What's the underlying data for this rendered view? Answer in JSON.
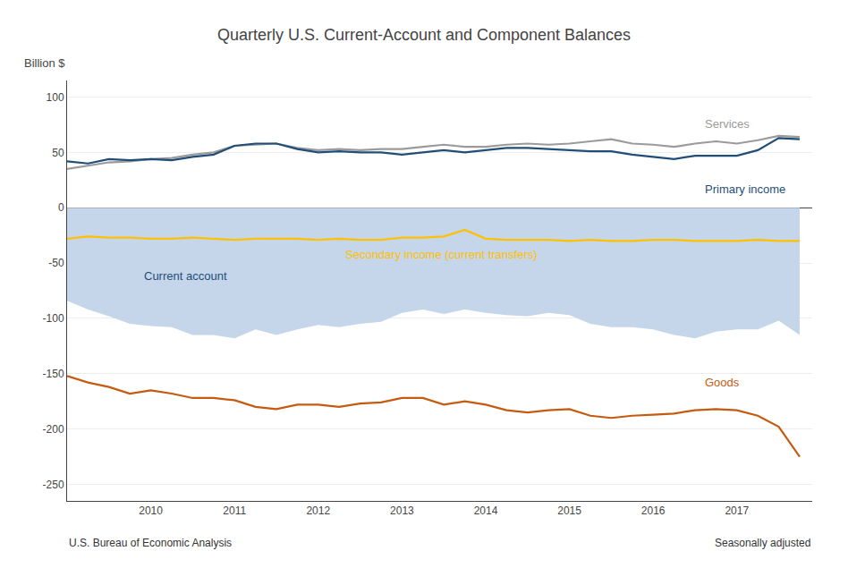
{
  "chart_data": {
    "type": "line",
    "title": "Quarterly U.S. Current-Account and Component Balances",
    "ylabel": "Billion $",
    "source": "U.S. Bureau of Economic Analysis",
    "note": "Seasonally adjusted",
    "x": [
      2009.0,
      2009.25,
      2009.5,
      2009.75,
      2010.0,
      2010.25,
      2010.5,
      2010.75,
      2011.0,
      2011.25,
      2011.5,
      2011.75,
      2012.0,
      2012.25,
      2012.5,
      2012.75,
      2013.0,
      2013.25,
      2013.5,
      2013.75,
      2014.0,
      2014.25,
      2014.5,
      2014.75,
      2015.0,
      2015.25,
      2015.5,
      2015.75,
      2016.0,
      2016.25,
      2016.5,
      2016.75,
      2017.0,
      2017.25,
      2017.5,
      2017.75
    ],
    "series": [
      {
        "name": "Current account",
        "type": "area",
        "color": "#c5d5ea",
        "values": [
          -84,
          -92,
          -98,
          -105,
          -107,
          -108,
          -115,
          -115,
          -118,
          -110,
          -115,
          -110,
          -106,
          -108,
          -105,
          -103,
          -95,
          -92,
          -96,
          -92,
          -95,
          -97,
          -98,
          -95,
          -97,
          -105,
          -108,
          -108,
          -110,
          -115,
          -118,
          -112,
          -110,
          -110,
          -102,
          -115
        ]
      },
      {
        "name": "Services",
        "type": "line",
        "color": "#9b9b9b",
        "values": [
          35,
          38,
          41,
          42,
          44,
          45,
          48,
          50,
          56,
          57,
          58,
          54,
          52,
          53,
          52,
          53,
          53,
          55,
          57,
          55,
          55,
          57,
          58,
          57,
          58,
          60,
          62,
          58,
          57,
          55,
          58,
          60,
          58,
          61,
          65,
          64
        ]
      },
      {
        "name": "Primary income",
        "type": "line",
        "color": "#1f4e79",
        "values": [
          42,
          40,
          44,
          43,
          44,
          43,
          46,
          48,
          56,
          58,
          58,
          53,
          50,
          51,
          50,
          50,
          48,
          50,
          52,
          50,
          52,
          54,
          54,
          53,
          52,
          51,
          51,
          48,
          46,
          44,
          47,
          47,
          47,
          52,
          63,
          62
        ]
      },
      {
        "name": "Secondary income (current transfers)",
        "type": "line",
        "color": "#ffc000",
        "values": [
          -28,
          -26,
          -27,
          -27,
          -28,
          -28,
          -27,
          -28,
          -29,
          -28,
          -28,
          -28,
          -29,
          -28,
          -29,
          -29,
          -27,
          -27,
          -26,
          -20,
          -28,
          -29,
          -29,
          -29,
          -30,
          -29,
          -30,
          -30,
          -29,
          -29,
          -30,
          -30,
          -30,
          -29,
          -30,
          -30
        ]
      },
      {
        "name": "Goods",
        "type": "line",
        "color": "#c55a11",
        "values": [
          -152,
          -158,
          -162,
          -168,
          -165,
          -168,
          -172,
          -172,
          -174,
          -180,
          -182,
          -178,
          -178,
          -180,
          -177,
          -176,
          -172,
          -172,
          -178,
          -175,
          -178,
          -183,
          -185,
          -183,
          -182,
          -188,
          -190,
          -188,
          -187,
          -186,
          -183,
          -182,
          -183,
          -188,
          -198,
          -225
        ]
      }
    ],
    "annotations": [
      {
        "text": "Services",
        "x": 2016.6,
        "y": 76,
        "color": "#9b9b9b"
      },
      {
        "text": "Primary income",
        "x": 2016.6,
        "y": 17,
        "color": "#1f4e79"
      },
      {
        "text": "Current account",
        "x": 2009.9,
        "y": -62,
        "color": "#1f4e79"
      },
      {
        "text": "Secondary income (current transfers)",
        "x": 2012.3,
        "y": -42,
        "color": "#ffc000"
      },
      {
        "text": "Goods",
        "x": 2016.6,
        "y": -158,
        "color": "#c55a11"
      }
    ],
    "xlim": [
      2009.0,
      2017.9
    ],
    "xticks": [
      2010,
      2011,
      2012,
      2013,
      2014,
      2015,
      2016,
      2017
    ],
    "ylim": [
      -265,
      115
    ],
    "yticks": [
      -250,
      -200,
      -150,
      -100,
      -50,
      0,
      50,
      100
    ],
    "grid": "y"
  }
}
